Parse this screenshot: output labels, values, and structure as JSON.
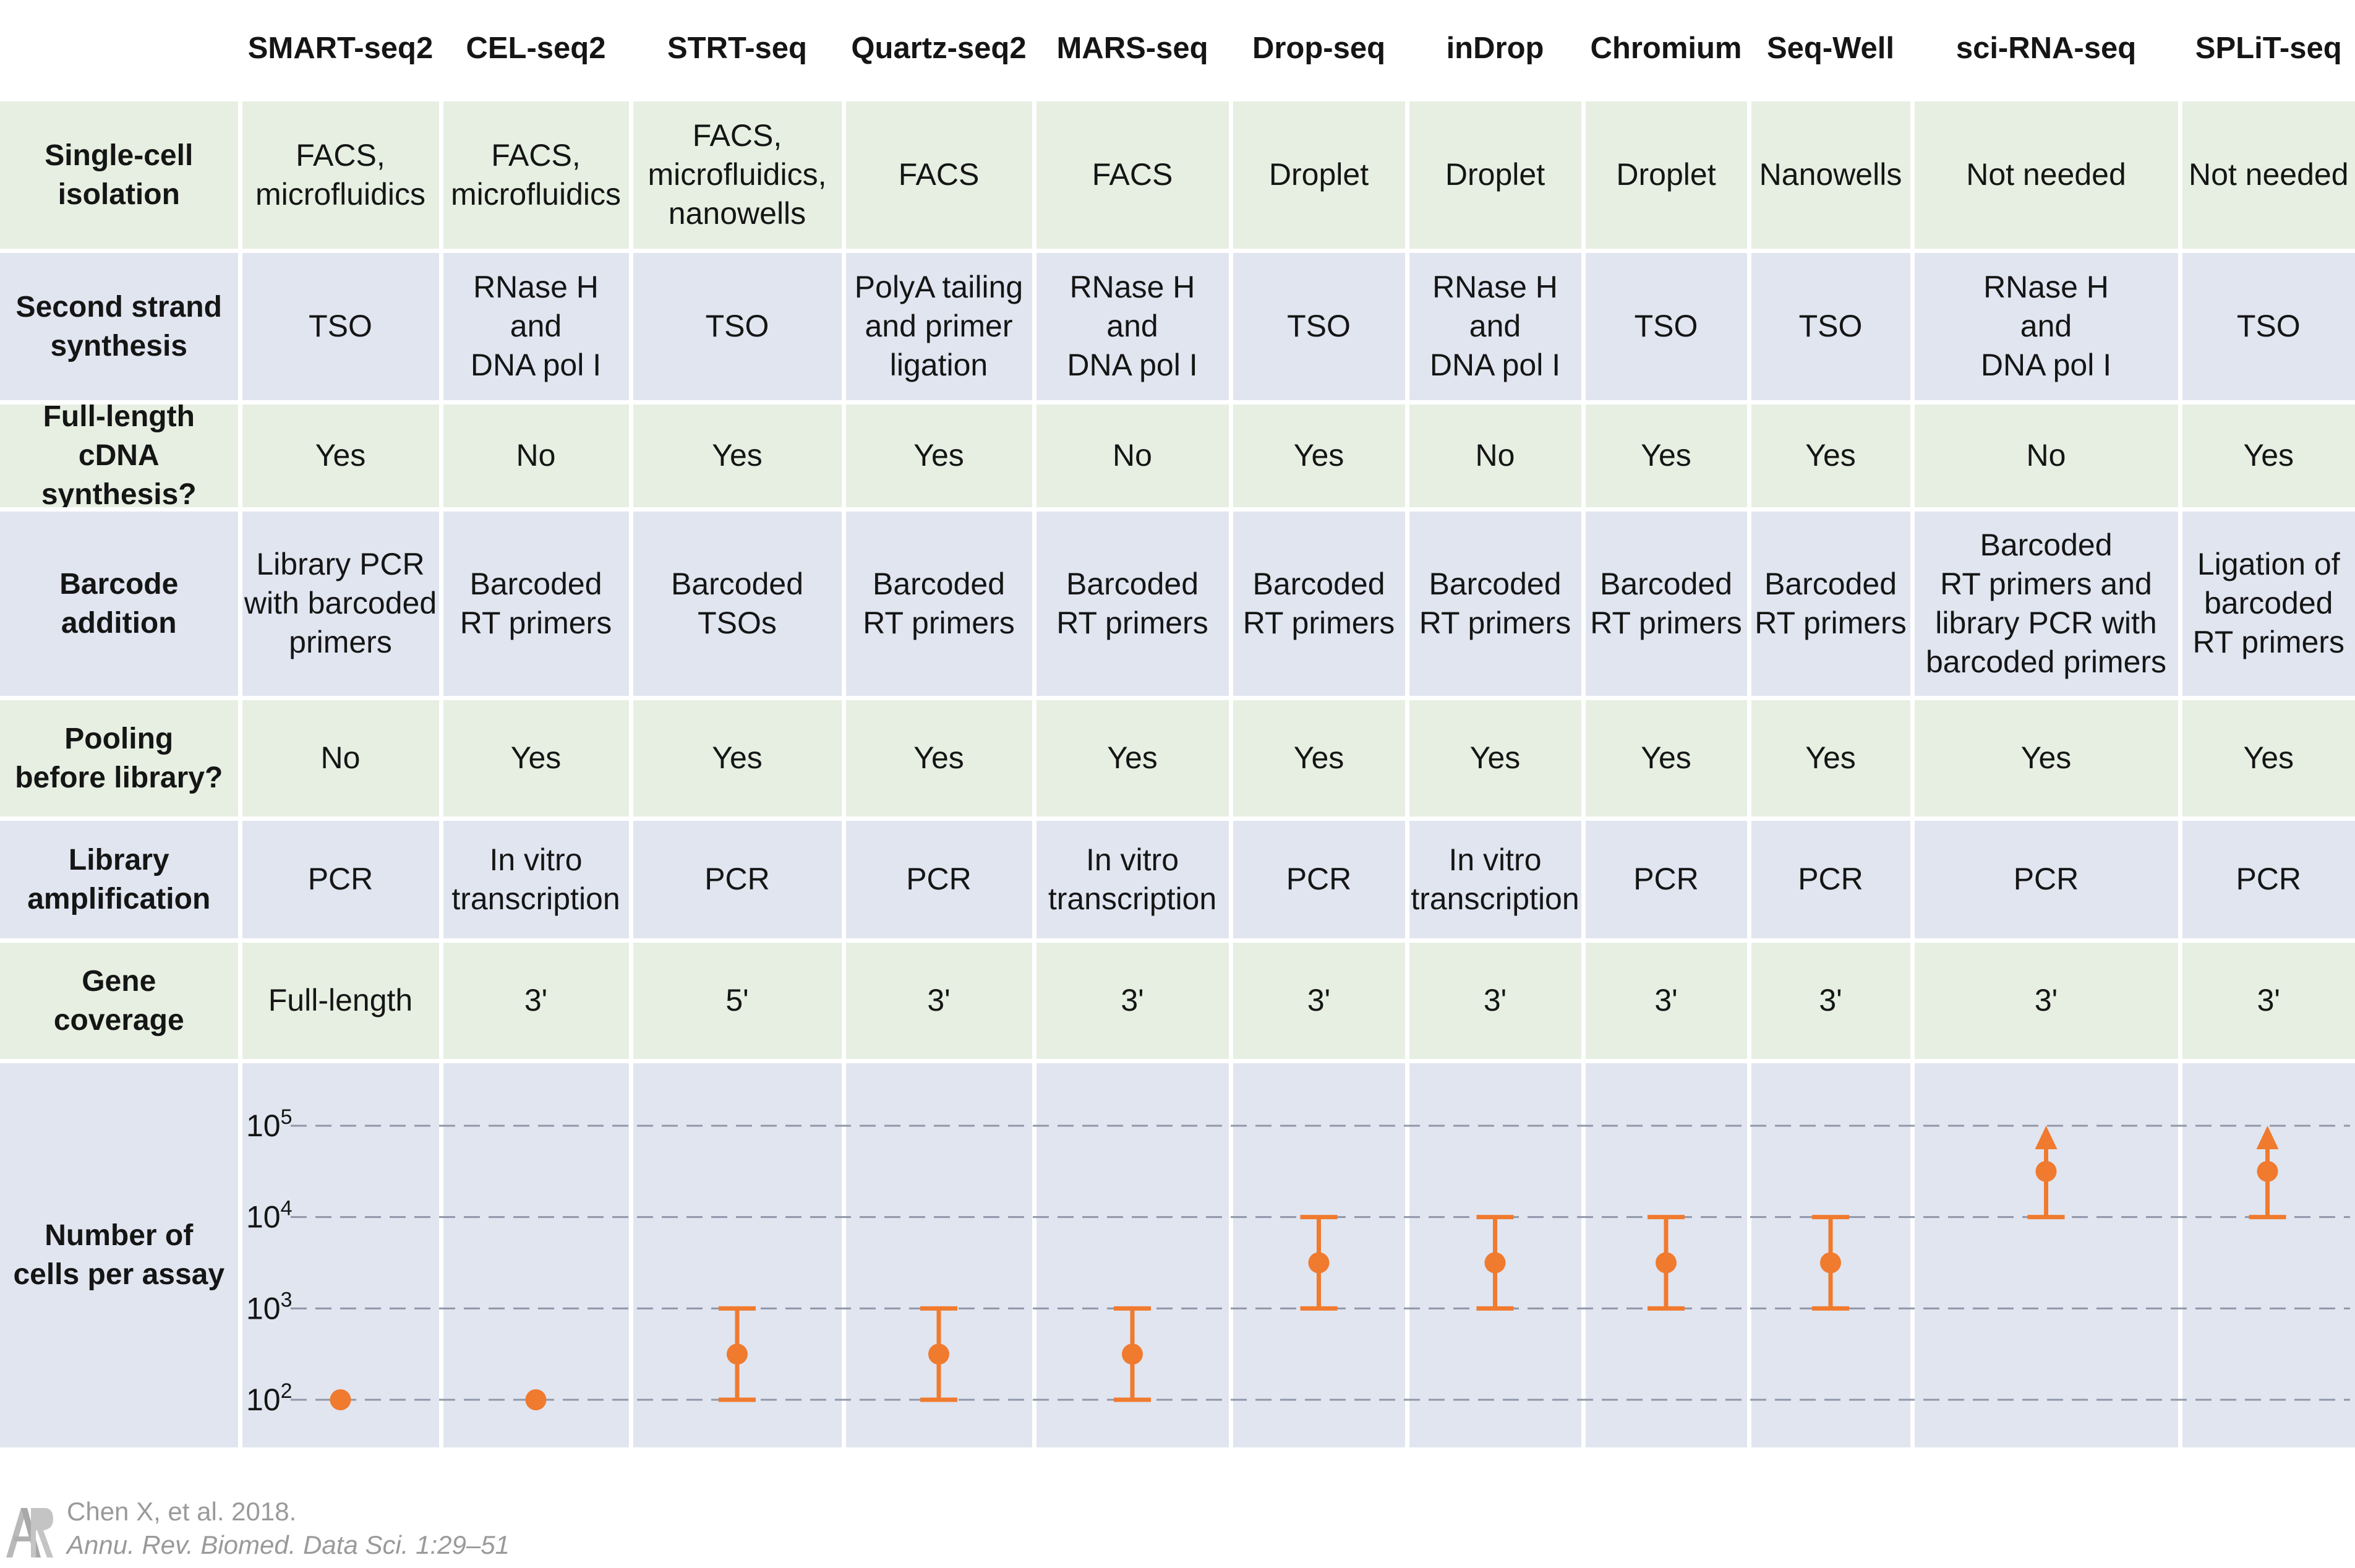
{
  "header": {
    "methods": [
      "SMART-seq2",
      "CEL-seq2",
      "STRT-seq",
      "Quartz-seq2",
      "MARS-seq",
      "Drop-seq",
      "inDrop",
      "Chromium",
      "Seq-Well",
      "sci-RNA-seq",
      "SPLiT-seq"
    ]
  },
  "rows": [
    {
      "label": "Single-cell\nisolation",
      "values": [
        "FACS,\nmicrofluidics",
        "FACS,\nmicrofluidics",
        "FACS,\nmicrofluidics,\nnanowells",
        "FACS",
        "FACS",
        "Droplet",
        "Droplet",
        "Droplet",
        "Nanowells",
        "Not needed",
        "Not needed"
      ]
    },
    {
      "label": "Second strand\nsynthesis",
      "values": [
        "TSO",
        "RNase H\nand\nDNA pol I",
        "TSO",
        "PolyA tailing\nand primer\nligation",
        "RNase H\nand\nDNA pol I",
        "TSO",
        "RNase H\nand\nDNA pol I",
        "TSO",
        "TSO",
        "RNase H\nand\nDNA pol I",
        "TSO"
      ]
    },
    {
      "label": "Full-length\ncDNA synthesis?",
      "values": [
        "Yes",
        "No",
        "Yes",
        "Yes",
        "No",
        "Yes",
        "No",
        "Yes",
        "Yes",
        "No",
        "Yes"
      ]
    },
    {
      "label": "Barcode\naddition",
      "values": [
        "Library PCR\nwith barcoded\nprimers",
        "Barcoded\nRT primers",
        "Barcoded\nTSOs",
        "Barcoded\nRT primers",
        "Barcoded\nRT primers",
        "Barcoded\nRT primers",
        "Barcoded\nRT primers",
        "Barcoded\nRT primers",
        "Barcoded\nRT primers",
        "Barcoded\nRT primers  and\nlibrary PCR with\nbarcoded primers",
        "Ligation of\nbarcoded\nRT primers"
      ]
    },
    {
      "label": "Pooling\nbefore library?",
      "values": [
        "No",
        "Yes",
        "Yes",
        "Yes",
        "Yes",
        "Yes",
        "Yes",
        "Yes",
        "Yes",
        "Yes",
        "Yes"
      ]
    },
    {
      "label": "Library\namplification",
      "values": [
        "PCR",
        "In vitro\ntranscription",
        "PCR",
        "PCR",
        "In vitro\ntranscription",
        "PCR",
        "In vitro\ntranscription",
        "PCR",
        "PCR",
        "PCR",
        "PCR"
      ]
    },
    {
      "label": "Gene\ncoverage",
      "values": [
        "Full-length",
        "3'",
        "5'",
        "3'",
        "3'",
        "3'",
        "3'",
        "3'",
        "3'",
        "3'",
        "3'"
      ]
    }
  ],
  "chart_data": {
    "type": "scatter",
    "ylabel": "Number of\ncells per assay",
    "yscale": "log",
    "ylim": [
      100,
      100000
    ],
    "yticks": [
      100,
      1000,
      10000,
      100000
    ],
    "ytick_labels": [
      {
        "base": "10",
        "exp": "2"
      },
      {
        "base": "10",
        "exp": "3"
      },
      {
        "base": "10",
        "exp": "4"
      },
      {
        "base": "10",
        "exp": "5"
      }
    ],
    "grid": "dashed horizontal at ticks",
    "categories": [
      "SMART-seq2",
      "CEL-seq2",
      "STRT-seq",
      "Quartz-seq2",
      "MARS-seq",
      "Drop-seq",
      "inDrop",
      "Chromium",
      "Seq-Well",
      "sci-RNA-seq",
      "SPLiT-seq"
    ],
    "points": [
      {
        "x": "SMART-seq2",
        "y": 100
      },
      {
        "x": "CEL-seq2",
        "y": 100
      },
      {
        "x": "STRT-seq",
        "y": 316,
        "low": 100,
        "high": 1000
      },
      {
        "x": "Quartz-seq2",
        "y": 316,
        "low": 100,
        "high": 1000
      },
      {
        "x": "MARS-seq",
        "y": 316,
        "low": 100,
        "high": 1000
      },
      {
        "x": "Drop-seq",
        "y": 3162,
        "low": 1000,
        "high": 10000
      },
      {
        "x": "inDrop",
        "y": 3162,
        "low": 1000,
        "high": 10000
      },
      {
        "x": "Chromium",
        "y": 3162,
        "low": 1000,
        "high": 10000
      },
      {
        "x": "Seq-Well",
        "y": 3162,
        "low": 1000,
        "high": 10000
      },
      {
        "x": "sci-RNA-seq",
        "y": 31623,
        "low": 10000,
        "open_upper": true
      },
      {
        "x": "SPLiT-seq",
        "y": 31623,
        "low": 10000,
        "open_upper": true
      }
    ]
  },
  "colors": {
    "marker": "#f07a2e",
    "row_green": "#e6efe1",
    "row_blue": "#e0e5f0",
    "grid": "#9097a8",
    "citation": "#9a9a9a"
  },
  "citation": {
    "line1": "Chen X, et al. 2018.",
    "line2": "Annu. Rev. Biomed. Data Sci. 1:29–51",
    "logo_letters": "AR"
  }
}
